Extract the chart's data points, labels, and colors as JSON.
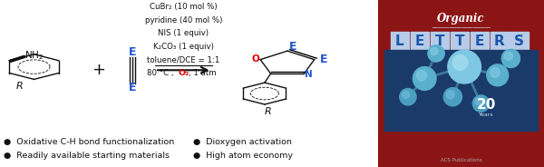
{
  "bg_color": "#ffffff",
  "blue_color": "#2255cc",
  "red_color": "#dd0000",
  "black_color": "#111111",
  "bullet_points_left": [
    "Oxidative C-H bond functionalization",
    "Readily available starting materials"
  ],
  "bullet_points_right": [
    "Dioxygen activation",
    "High atom economy"
  ],
  "reaction_conditions_plain": [
    "CuBr₂ (10 mol %)",
    "pyridine (40 mol %)",
    "NIS (1 equiv)",
    "K₂CO₃ (1 equiv)",
    "toluene/DCE = 1:1"
  ],
  "journal_bg": "#8b1515",
  "journal_inner_bg": "#1a3a6a",
  "letters_bg": "#b8cce8",
  "letters_color": "#1a55aa"
}
